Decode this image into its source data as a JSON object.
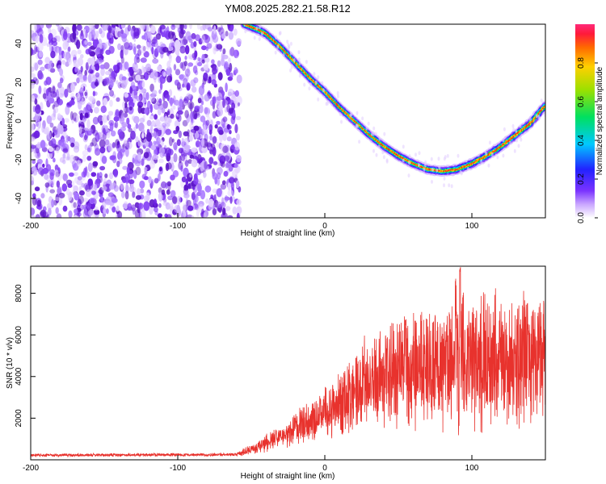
{
  "title": "YM08.2025.282.21.58.R12",
  "colors": {
    "snr_line": "#e8322d",
    "noise_dots": "#6a1fe0",
    "background": "#ffffff"
  },
  "chart_data": [
    {
      "type": "heatmap",
      "xlabel": "Height of straight line (km)",
      "ylabel": "Frequency (Hz)",
      "xlim": [
        -200,
        150
      ],
      "ylim": [
        -50,
        50
      ],
      "xticks": [
        "-200",
        "-100",
        "0",
        "100"
      ],
      "yticks": [
        "-40",
        "-20",
        "0",
        "20",
        "40"
      ],
      "colorbar": {
        "label": "Normalized spectral amplitude",
        "range": [
          0,
          1
        ],
        "ticks": [
          "0.0",
          "0.2",
          "0.4",
          "0.6",
          "0.8"
        ],
        "colormap": "rainbow"
      },
      "noise_region_x": [
        -200,
        -58
      ],
      "ridge": {
        "x": [
          -55,
          -45,
          -40,
          -30,
          -20,
          -10,
          0,
          10,
          20,
          30,
          40,
          50,
          60,
          70,
          80,
          90,
          100,
          110,
          120,
          130,
          140,
          150
        ],
        "y": [
          50,
          47,
          45,
          38,
          30,
          22,
          15,
          7,
          0,
          -7,
          -13,
          -18,
          -22,
          -25,
          -26,
          -25,
          -22,
          -18,
          -13,
          -7,
          -1,
          8
        ]
      }
    },
    {
      "type": "line",
      "xlabel": "Height of straight line (km)",
      "ylabel": "SNR (10 * v/v)",
      "xlim": [
        -200,
        150
      ],
      "ylim": [
        0,
        9300
      ],
      "xticks": [
        "-200",
        "-100",
        "0",
        "100"
      ],
      "yticks": [
        "2000",
        "4000",
        "6000",
        "8000"
      ],
      "envelope": {
        "x": [
          -200,
          -150,
          -100,
          -60,
          -50,
          -40,
          -30,
          -20,
          -10,
          0,
          10,
          20,
          30,
          40,
          50,
          60,
          70,
          80,
          90,
          100,
          110,
          120,
          130,
          140,
          150
        ],
        "y": [
          220,
          230,
          240,
          250,
          500,
          800,
          1100,
          1500,
          1900,
          2300,
          2800,
          3300,
          3700,
          4000,
          4200,
          4350,
          4450,
          4500,
          4600,
          4650,
          4700,
          4700,
          4750,
          4800,
          4850
        ]
      },
      "peaks": [
        {
          "x": 55,
          "y": 6800
        },
        {
          "x": 75,
          "y": 7000
        },
        {
          "x": 89,
          "y": 8700
        },
        {
          "x": 92,
          "y": 9300
        },
        {
          "x": 94,
          "y": 8200
        }
      ]
    }
  ]
}
